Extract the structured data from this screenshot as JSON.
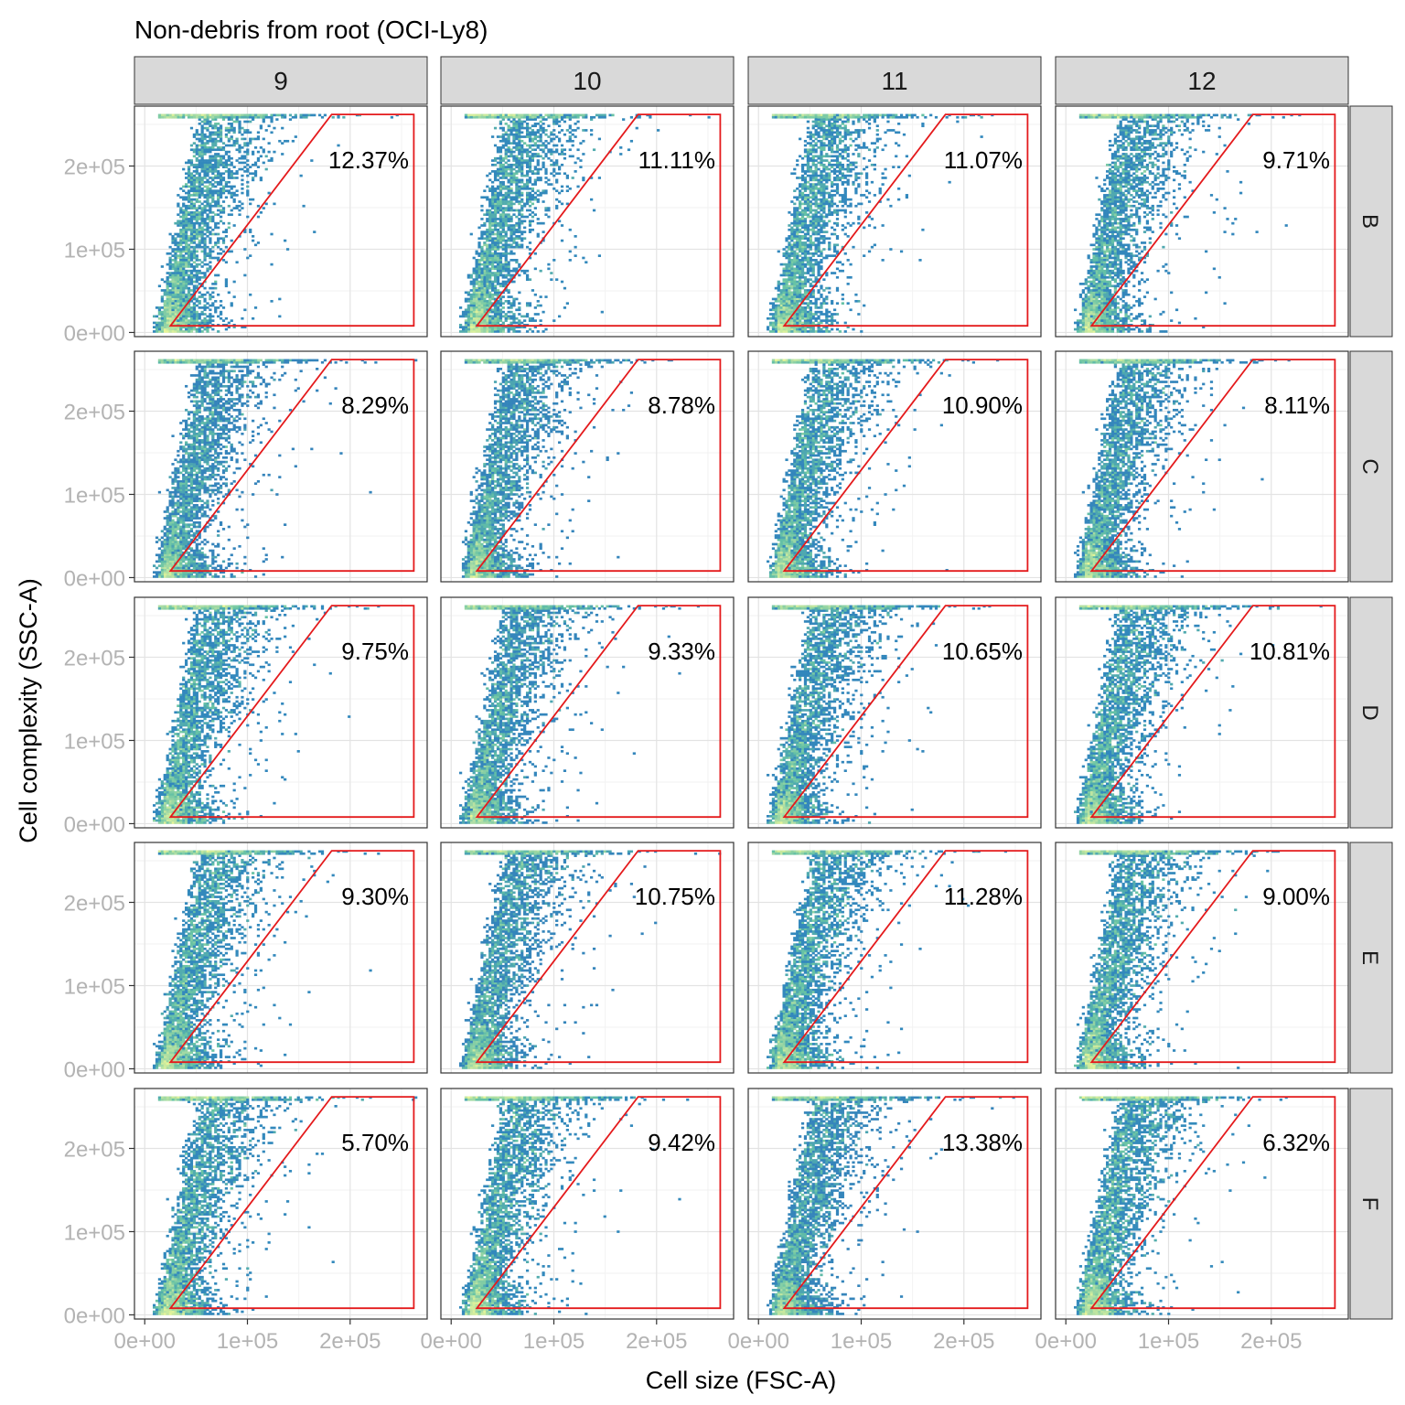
{
  "chart_data": {
    "type": "heatmap",
    "subtype": "faceted density scatter (flow cytometry) with polygon gate",
    "title": "Non-debris from root (OCI-Ly8)",
    "xlabel": "Cell size (FSC-A)",
    "ylabel": "Cell complexity (SSC-A)",
    "xlim": [
      -10000,
      275000
    ],
    "ylim": [
      -5000,
      272000
    ],
    "x_ticks": [
      0,
      100000,
      200000
    ],
    "x_tick_labels": [
      "0e+00",
      "1e+05",
      "2e+05"
    ],
    "y_ticks": [
      0,
      100000,
      200000
    ],
    "y_tick_labels": [
      "0e+00",
      "1e+05",
      "2e+05"
    ],
    "grid": true,
    "facet_cols": [
      "9",
      "10",
      "11",
      "12"
    ],
    "facet_rows": [
      "B",
      "C",
      "D",
      "E",
      "F"
    ],
    "gate_polygon": {
      "color": "#e41a1c",
      "points": [
        [
          25000,
          8000
        ],
        [
          262000,
          8000
        ],
        [
          262000,
          262000
        ],
        [
          182000,
          262000
        ]
      ]
    },
    "colormap": [
      "#5e4fa2",
      "#3288bd",
      "#66c2a5",
      "#abdda4",
      "#e6f598"
    ],
    "gate_percentages": [
      [
        "12.37%",
        "11.11%",
        "11.07%",
        "9.71%"
      ],
      [
        "8.29%",
        "8.78%",
        "10.90%",
        "8.11%"
      ],
      [
        "9.75%",
        "9.33%",
        "10.65%",
        "10.81%"
      ],
      [
        "9.30%",
        "10.75%",
        "11.28%",
        "9.00%"
      ],
      [
        "5.70%",
        "9.42%",
        "13.38%",
        "6.32%"
      ]
    ]
  }
}
